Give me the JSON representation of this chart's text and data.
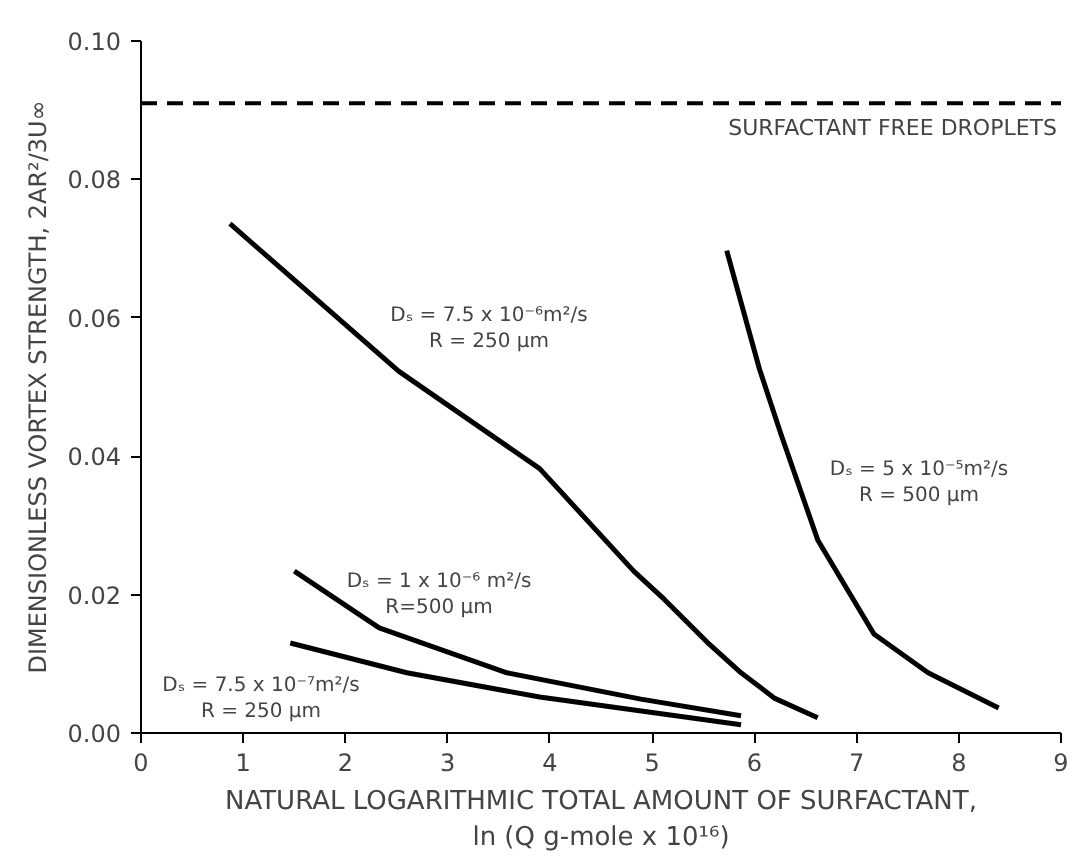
{
  "chart_data": {
    "type": "line",
    "xlabel": "NATURAL LOGARITHMIC TOTAL AMOUNT OF SURFACTANT,\nln (Q g-mole x 10¹⁶)",
    "ylabel": "DIMENSIONLESS VORTEX STRENGTH, 2AR²/3U∞",
    "xlim": [
      0,
      9
    ],
    "ylim": [
      0,
      0.1
    ],
    "xticks": [
      0,
      1,
      2,
      3,
      4,
      5,
      6,
      7,
      8,
      9
    ],
    "yticks": [
      {
        "value": 0,
        "label": "0.00"
      },
      {
        "value": 0.02,
        "label": "0.02"
      },
      {
        "value": 0.04,
        "label": "0.04"
      },
      {
        "value": 0.06,
        "label": "0.06"
      },
      {
        "value": 0.08,
        "label": "0.08"
      },
      {
        "value": 0.1,
        "label": "0.10"
      }
    ],
    "grid": false,
    "marker": "none",
    "line_style": "solid",
    "ref_lines": [
      {
        "axis": "y",
        "value": 0.091,
        "label": "SURFACTANT FREE DROPLETS",
        "line_style": "dashed",
        "color": "#000000"
      }
    ],
    "series": [
      {
        "color": "#000000",
        "x": [
          0.87,
          2.52,
          3.9,
          4.82,
          5.12,
          5.54,
          5.87,
          6.2,
          6.62
        ],
        "values": [
          0.0736,
          0.0523,
          0.0382,
          0.0234,
          0.0193,
          0.0131,
          0.0087,
          0.005,
          0.0022
        ]
      },
      {
        "color": "#000000",
        "x": [
          5.73,
          6.05,
          6.26,
          6.62,
          7.17,
          7.7,
          8.39
        ],
        "values": [
          0.0697,
          0.0526,
          0.0432,
          0.0279,
          0.0143,
          0.0087,
          0.0036
        ]
      },
      {
        "color": "#000000",
        "x": [
          1.5,
          2.33,
          3.58,
          4.89,
          5.87
        ],
        "values": [
          0.0234,
          0.0152,
          0.0087,
          0.0049,
          0.0025
        ]
      },
      {
        "color": "#000000",
        "x": [
          1.46,
          2.6,
          3.9,
          5.87
        ],
        "values": [
          0.013,
          0.0087,
          0.0052,
          0.0012
        ]
      }
    ],
    "annotations": [
      "Dₛ = 7.5 x 10⁻⁶m²/s\nR = 250 μm",
      "Dₛ = 5 x 10⁻⁵m²/s\nR = 500 μm",
      "Dₛ = 1 x 10⁻⁶ m²/s\nR=500 μm",
      "Dₛ = 7.5 x 10⁻⁷m²/s\nR = 250 μm"
    ]
  }
}
